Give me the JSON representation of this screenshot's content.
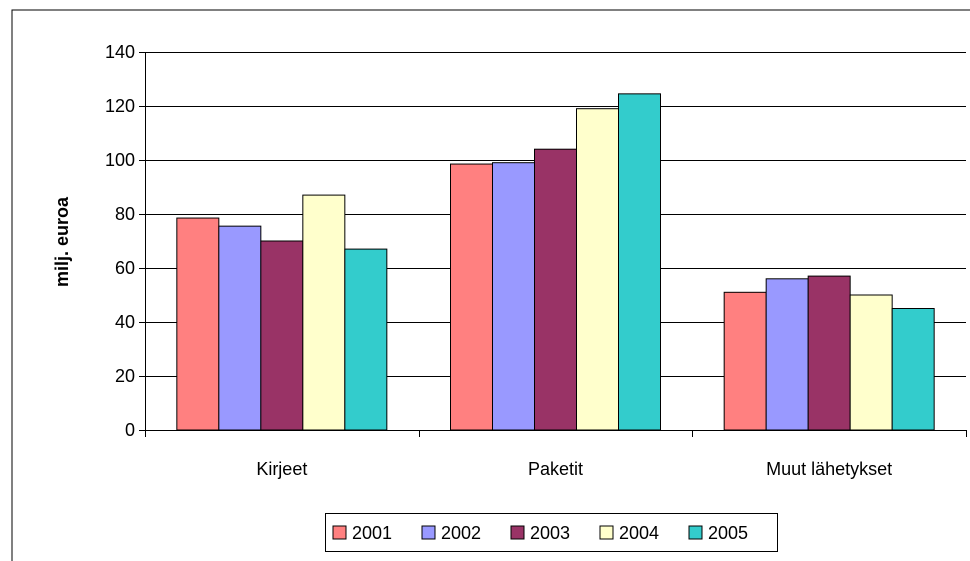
{
  "chart_data": {
    "type": "bar",
    "title": "",
    "xlabel": "",
    "ylabel": "milj. euroa",
    "ylim": [
      0,
      140
    ],
    "y_ticks": [
      0,
      20,
      40,
      60,
      80,
      100,
      120,
      140
    ],
    "grid": true,
    "legend_position": "bottom",
    "categories": [
      "Kirjeet",
      "Paketit",
      "Muut lähetykset"
    ],
    "series": [
      {
        "name": "2001",
        "color": "#FF8080",
        "values": [
          78.5,
          98.5,
          51
        ]
      },
      {
        "name": "2002",
        "color": "#9999FF",
        "values": [
          75.5,
          99,
          56
        ]
      },
      {
        "name": "2003",
        "color": "#993366",
        "values": [
          70,
          104,
          57
        ]
      },
      {
        "name": "2004",
        "color": "#FFFFCC",
        "values": [
          87,
          119,
          50
        ]
      },
      {
        "name": "2005",
        "color": "#33CCCC",
        "values": [
          67,
          124.5,
          45
        ]
      }
    ]
  }
}
